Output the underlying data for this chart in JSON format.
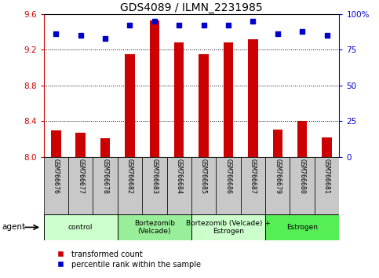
{
  "title": "GDS4089 / ILMN_2231985",
  "samples": [
    "GSM766676",
    "GSM766677",
    "GSM766678",
    "GSM766682",
    "GSM766683",
    "GSM766684",
    "GSM766685",
    "GSM766686",
    "GSM766687",
    "GSM766679",
    "GSM766680",
    "GSM766681"
  ],
  "red_values": [
    8.3,
    8.27,
    8.21,
    9.15,
    9.53,
    9.28,
    9.15,
    9.28,
    9.32,
    8.31,
    8.4,
    8.22
  ],
  "blue_values": [
    86,
    85,
    83,
    92,
    95,
    92,
    92,
    92,
    95,
    86,
    88,
    85
  ],
  "ylim_left": [
    8.0,
    9.6
  ],
  "ylim_right": [
    0,
    100
  ],
  "yticks_left": [
    8.0,
    8.4,
    8.8,
    9.2,
    9.6
  ],
  "yticks_right": [
    0,
    25,
    50,
    75,
    100
  ],
  "ytick_labels_right": [
    "0",
    "25",
    "50",
    "75",
    "100%"
  ],
  "groups": [
    {
      "label": "control",
      "start": 0,
      "end": 3,
      "color": "#ccffcc"
    },
    {
      "label": "Bortezomib\n(Velcade)",
      "start": 3,
      "end": 6,
      "color": "#99ee99"
    },
    {
      "label": "Bortezomib (Velcade) +\nEstrogen",
      "start": 6,
      "end": 9,
      "color": "#ccffcc"
    },
    {
      "label": "Estrogen",
      "start": 9,
      "end": 12,
      "color": "#55ee55"
    }
  ],
  "agent_label": "agent",
  "legend_red": "transformed count",
  "legend_blue": "percentile rank within the sample",
  "bar_color": "#cc0000",
  "dot_color": "#0000cc",
  "bar_bottom": 8.0,
  "bar_width": 0.4,
  "grid_color": "black",
  "tick_color_left": "#cc0000",
  "tick_color_right": "#0000cc",
  "sample_box_color": "#c8c8c8",
  "fig_width": 4.83,
  "fig_height": 3.54,
  "dpi": 100
}
